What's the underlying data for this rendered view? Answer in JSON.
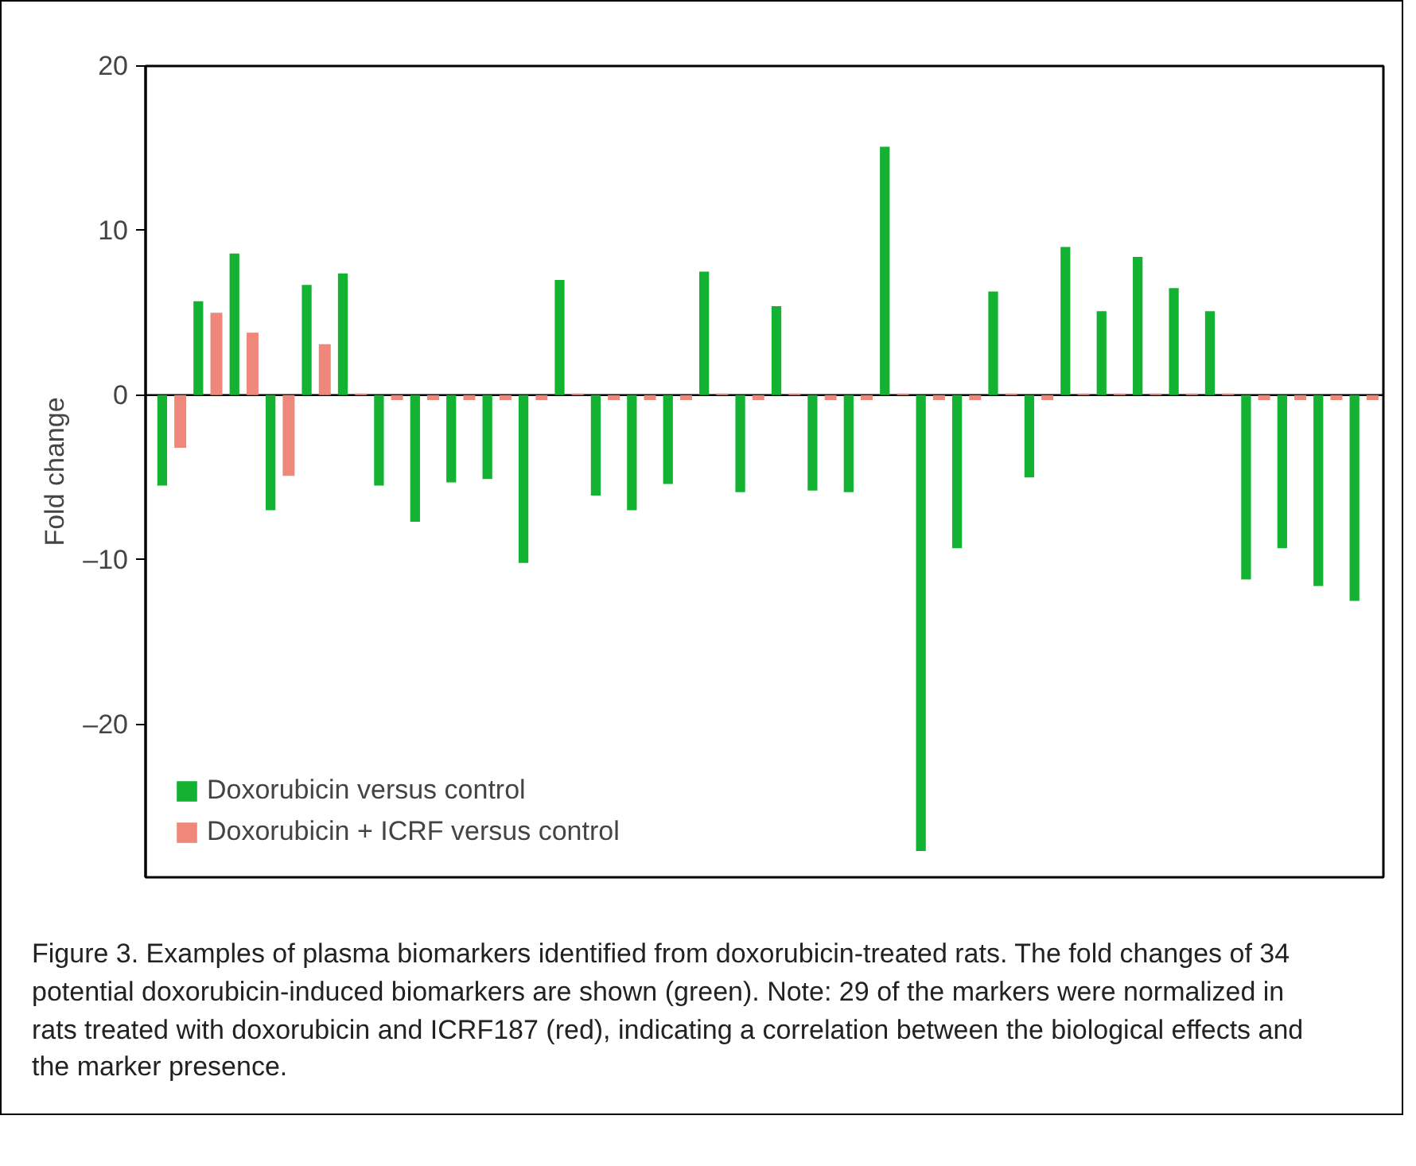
{
  "chart_data": {
    "type": "bar",
    "ylabel": "Fold change",
    "categories": [
      null,
      null,
      null,
      null,
      null,
      null,
      null,
      null,
      null,
      null,
      null,
      null,
      null,
      null,
      null,
      null,
      null,
      null,
      null,
      null,
      null,
      null,
      null,
      null,
      null,
      null,
      null,
      null,
      null,
      null,
      null,
      null,
      null,
      null
    ],
    "series": [
      {
        "name": "Doxorubicin versus control",
        "color": "#13b232",
        "values": [
          -5.5,
          5.7,
          8.6,
          -7.0,
          6.7,
          7.4,
          -5.5,
          -7.7,
          -5.3,
          -5.1,
          -10.2,
          7.0,
          -6.1,
          -7.0,
          -5.4,
          7.5,
          -5.9,
          5.4,
          -5.8,
          -5.9,
          15.1,
          -27.7,
          -9.3,
          6.3,
          -5.0,
          9.0,
          5.1,
          8.4,
          6.5,
          5.1,
          -11.2,
          -9.3,
          -11.6,
          -12.5
        ]
      },
      {
        "name": "Doxorubicin + ICRF versus control",
        "color": "#ef877a",
        "values": [
          -3.2,
          5.0,
          3.8,
          -4.9,
          3.1,
          0.1,
          -0.3,
          -0.3,
          -0.3,
          -0.3,
          -0.3,
          0.1,
          -0.3,
          -0.3,
          -0.3,
          0.1,
          -0.3,
          0.1,
          -0.3,
          -0.3,
          0.1,
          -0.3,
          -0.3,
          0.1,
          -0.3,
          0.1,
          0.1,
          0.1,
          0.1,
          0.1,
          -0.3,
          -0.3,
          -0.3,
          -0.3
        ]
      }
    ],
    "ylim": [
      -29.3,
      20
    ],
    "yticks": [
      20,
      10,
      0,
      {
        "value": -10,
        "label": "–10"
      },
      {
        "value": -20,
        "label": "–20"
      }
    ],
    "grid": false,
    "legend": "bottom left",
    "ref_lines": [
      {
        "axis": "y",
        "value": 0,
        "color": "#000000"
      }
    ],
    "annotations": [
      "Figure 3. Examples of plasma biomarkers identified from doxorubicin-treated rats. The fold changes of 34 potential doxorubicin-induced biomarkers are shown (green). Note: 29 of the markers were normalized in rats treated with doxorubicin and ICRF187 (red), indicating a correlation between the biological effects and the marker presence."
    ]
  }
}
